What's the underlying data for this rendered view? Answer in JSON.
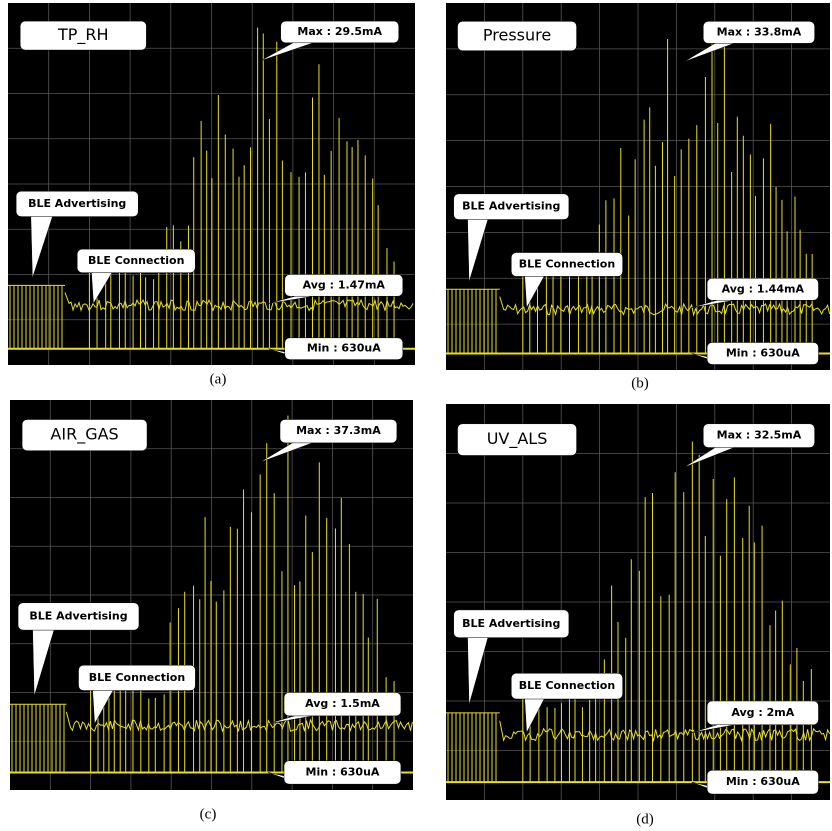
{
  "panels": [
    {
      "title": "TP_RH",
      "max": "Max : 29.5mA",
      "avg": "Avg : 1.47mA",
      "min": "Min : 630uA",
      "advertising": "BLE Advertising",
      "connection": "BLE Connection",
      "caption": "(a)"
    },
    {
      "title": "Pressure",
      "max": "Max : 33.8mA",
      "avg": "Avg : 1.44mA",
      "min": "Min : 630uA",
      "advertising": "BLE Advertising",
      "connection": "BLE Connection",
      "caption": "(b)"
    },
    {
      "title": "AIR_GAS",
      "max": "Max : 37.3mA",
      "avg": "Avg : 1.5mA",
      "min": "Min : 630uA",
      "advertising": "BLE Advertising",
      "connection": "BLE Connection",
      "caption": "(c)"
    },
    {
      "title": "UV_ALS",
      "max": "Max : 32.5mA",
      "avg": "Avg : 2mA",
      "min": "Min : 630uA",
      "advertising": "BLE Advertising",
      "connection": "BLE Connection",
      "caption": "(d)"
    }
  ]
}
